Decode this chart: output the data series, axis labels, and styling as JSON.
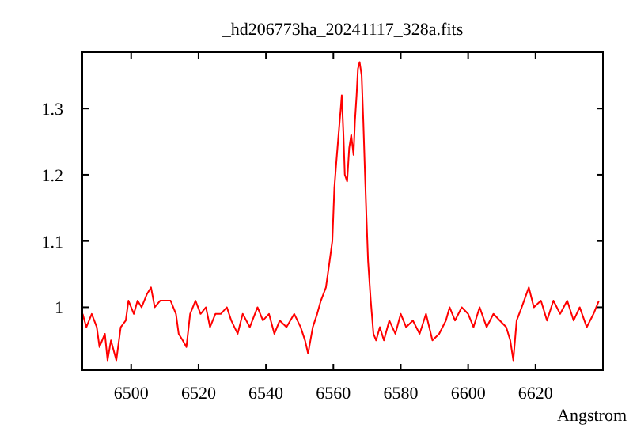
{
  "chart_data": {
    "type": "line",
    "title": "_hd206773ha_20241117_328a.fits",
    "xlabel": "Angstrom",
    "xlim": [
      6485.5,
      6640
    ],
    "ylim": [
      0.905,
      1.385
    ],
    "xticks": [
      6500,
      6520,
      6540,
      6560,
      6580,
      6600,
      6620
    ],
    "yticks": [
      1,
      1.1,
      1.2,
      1.3
    ],
    "grid": false,
    "marker": "none",
    "line_style": "solid",
    "series": [
      {
        "color": "#ff0000",
        "x": [
          6485.6,
          6486.7,
          6488.3,
          6489.8,
          6490.6,
          6492.2,
          6493,
          6494,
          6495.6,
          6496.9,
          6498.4,
          6499.2,
          6500.8,
          6501.9,
          6503.1,
          6504.7,
          6505.9,
          6507,
          6508.6,
          6510.2,
          6511.7,
          6513.3,
          6514.1,
          6515.3,
          6516.4,
          6517.5,
          6519.1,
          6520.6,
          6522.2,
          6523.4,
          6525,
          6526.6,
          6528.4,
          6529.7,
          6531.6,
          6533.1,
          6535.2,
          6537.5,
          6539.1,
          6540.9,
          6542.5,
          6544.1,
          6546.1,
          6548.4,
          6550.3,
          6551.6,
          6552.5,
          6553.9,
          6555.2,
          6556.3,
          6557.8,
          6558.9,
          6559.7,
          6560.3,
          6560.9,
          6561.7,
          6562.2,
          6562.5,
          6563,
          6563.4,
          6564.1,
          6564.7,
          6565.3,
          6566,
          6566.4,
          6566.9,
          6567.3,
          6567.8,
          6568.4,
          6568.9,
          6569.4,
          6569.8,
          6570.3,
          6571.1,
          6571.9,
          6572.7,
          6573.8,
          6575,
          6576.6,
          6578.4,
          6580,
          6581.6,
          6583.6,
          6585.6,
          6587.5,
          6589.4,
          6591.4,
          6593.4,
          6594.5,
          6596.1,
          6598.1,
          6600,
          6601.6,
          6603.4,
          6605.5,
          6607.5,
          6609.4,
          6611.3,
          6612.5,
          6613.4,
          6614.4,
          6615.9,
          6618,
          6619.5,
          6621.6,
          6623.4,
          6625.3,
          6627.3,
          6629.4,
          6631.3,
          6633.1,
          6635.2,
          6637.2,
          6638.8
        ],
        "values": [
          0.99,
          0.97,
          0.99,
          0.97,
          0.94,
          0.96,
          0.92,
          0.95,
          0.92,
          0.97,
          0.98,
          1.01,
          0.99,
          1.01,
          1.0,
          1.02,
          1.03,
          1.0,
          1.01,
          1.01,
          1.01,
          0.99,
          0.96,
          0.95,
          0.94,
          0.99,
          1.01,
          0.99,
          1.0,
          0.97,
          0.99,
          0.99,
          1.0,
          0.98,
          0.96,
          0.99,
          0.97,
          1.0,
          0.98,
          0.99,
          0.96,
          0.98,
          0.97,
          0.99,
          0.97,
          0.95,
          0.93,
          0.97,
          0.99,
          1.01,
          1.03,
          1.07,
          1.1,
          1.18,
          1.22,
          1.27,
          1.3,
          1.32,
          1.26,
          1.2,
          1.19,
          1.24,
          1.26,
          1.23,
          1.28,
          1.32,
          1.36,
          1.37,
          1.35,
          1.28,
          1.2,
          1.14,
          1.07,
          1.01,
          0.96,
          0.95,
          0.97,
          0.95,
          0.98,
          0.96,
          0.99,
          0.97,
          0.98,
          0.96,
          0.99,
          0.95,
          0.96,
          0.98,
          1.0,
          0.98,
          1.0,
          0.99,
          0.97,
          1.0,
          0.97,
          0.99,
          0.98,
          0.97,
          0.95,
          0.92,
          0.98,
          1.0,
          1.03,
          1.0,
          1.01,
          0.98,
          1.01,
          0.99,
          1.01,
          0.98,
          1.0,
          0.97,
          0.99,
          1.01
        ]
      }
    ]
  }
}
